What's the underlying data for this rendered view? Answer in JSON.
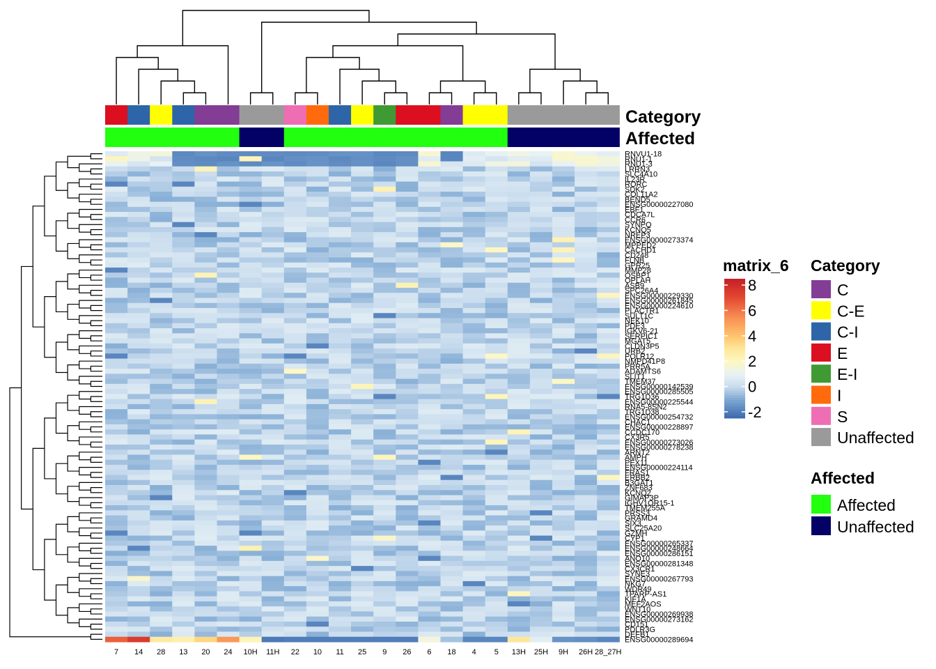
{
  "chart_data": {
    "type": "heatmap",
    "columns": [
      "7",
      "14",
      "28",
      "13",
      "20",
      "24",
      "10H",
      "11H",
      "22",
      "10",
      "11",
      "25",
      "9",
      "26",
      "6",
      "18",
      "4",
      "5",
      "13H",
      "25H",
      "9H",
      "26H",
      "28_27H"
    ],
    "category_annotation": {
      "title": "Category",
      "values": [
        "E",
        "C-I",
        "C-E",
        "C-I",
        "C",
        "C",
        "Unaffected",
        "Unaffected",
        "S",
        "I",
        "C-I",
        "C-E",
        "E-I",
        "E",
        "E",
        "C",
        "C-E",
        "C-E",
        "Unaffected",
        "Unaffected",
        "Unaffected",
        "Unaffected",
        "Unaffected"
      ]
    },
    "affected_annotation": {
      "title": "Affected",
      "values": [
        "Affected",
        "Affected",
        "Affected",
        "Affected",
        "Affected",
        "Affected",
        "Unaffected",
        "Unaffected",
        "Affected",
        "Affected",
        "Affected",
        "Affected",
        "Affected",
        "Affected",
        "Affected",
        "Affected",
        "Affected",
        "Affected",
        "Unaffected",
        "Unaffected",
        "Unaffected",
        "Unaffected",
        "Unaffected"
      ]
    },
    "row_labels": [
      "RNVU1-18",
      "RNU1-1",
      "RNU1-3",
      "LRRN3",
      "SLC4A10",
      "IL23R",
      "RORC",
      "SDK2",
      "COL11A2",
      "BEND5",
      "ENSG00000227080",
      "EBF1",
      "CDCA7L",
      "CCR6",
      "SYNPO",
      "KCNQ5",
      "NREP3",
      "ENSG00000273374",
      "MPPED2",
      "CACHD1",
      "CD248",
      "FLNB",
      "GPR25",
      "MMP28",
      "OSBP1",
      "OPLAH",
      "ASB9",
      "SPC26A4",
      "ENSG00000229330",
      "ENSG00000261845",
      "ENSG00000224610",
      "PLACTR1",
      "SULT1C",
      "NEK10",
      "PDE3",
      "IGKV6-21",
      "SERPIC1",
      "MGAT5",
      "CLDN3P5",
      "URB2",
      "POLR12",
      "NMPD41P8",
      "PRR5A",
      "ADAMTS6",
      "SLIT1",
      "TMEM37",
      "ENSG00000142539",
      "ENSG00000285505",
      "TRG1D36",
      "ENSG00000225544",
      "RNA5-8SN2",
      "TRG1D38",
      "ENSG00000254732",
      "CHAC1",
      "ENSG00000228897",
      "CCDC170",
      "CX3R5",
      "ENSG00000273026",
      "ENSG00000278238",
      "ARNT2",
      "AMPH",
      "PEX11",
      "ENSG00000224114",
      "FRAS1",
      "ERBB2",
      "B3GAT1",
      "ZNF683",
      "KCNQ2",
      "GIMAP3P",
      "IGHV1OR15-1",
      "TMEM255A",
      "PRSS3",
      "GRAMD4",
      "SIX3",
      "SLC25A20",
      "GZMH",
      "CYP1",
      "ENSG00000265337",
      "ENSG00000248664",
      "ENSG00000286151",
      "ANO10",
      "ENSG00000281348",
      "CX3CR1",
      "SYNE3",
      "ENSG00000267793",
      "NKG7",
      "WDR49",
      "TPARP-AS1",
      "KIF1A",
      "MEF2AOS",
      "WNT10",
      "ENSG00000269938",
      "ENSG00000273162",
      "CD151",
      "PDLR3G",
      "DEFB1",
      "ENSG00000289694"
    ],
    "matrix_summary": "Z-scored expression values per gene (rows) across samples (columns); most cells near 0 (light blue), with high values in the bottom row for samples 7 and 14.",
    "highlight_values": {
      "ENSG00000289694": [
        6.5,
        7.5,
        2.8,
        2.5,
        3.5,
        5.2,
        2.2,
        -2.1,
        -2.0,
        -2.0,
        -2.0,
        -2.0,
        -2.0,
        -2.0,
        1.5,
        -0.5,
        -1.8,
        -1.8,
        3.0,
        0.8,
        -1.5,
        -1.6,
        -1.8
      ]
    },
    "color_scale": {
      "title": "matrix_6",
      "ticks": [
        "8",
        "6",
        "4",
        "2",
        "0",
        "-2"
      ],
      "range": [
        -2.5,
        8.5
      ],
      "stops": [
        {
          "v": -2.5,
          "c": "#3a68ae"
        },
        {
          "v": -1.0,
          "c": "#7fa9d3"
        },
        {
          "v": 0.0,
          "c": "#c9dcee"
        },
        {
          "v": 1.0,
          "c": "#e8f2f5"
        },
        {
          "v": 2.0,
          "c": "#fdf7c2"
        },
        {
          "v": 3.0,
          "c": "#fee79a"
        },
        {
          "v": 4.0,
          "c": "#fec46e"
        },
        {
          "v": 5.5,
          "c": "#f88d52"
        },
        {
          "v": 7.0,
          "c": "#e34a33"
        },
        {
          "v": 8.5,
          "c": "#c51f26"
        }
      ]
    },
    "legends": {
      "category": {
        "title": "Category",
        "items": [
          {
            "label": "C",
            "color": "#833d95"
          },
          {
            "label": "C-E",
            "color": "#ffff00"
          },
          {
            "label": "C-I",
            "color": "#2d65a8"
          },
          {
            "label": "E",
            "color": "#db0f1f"
          },
          {
            "label": "E-I",
            "color": "#3f9a33"
          },
          {
            "label": "I",
            "color": "#ff6b0c"
          },
          {
            "label": "S",
            "color": "#ef6db2"
          },
          {
            "label": "Unaffected",
            "color": "#9a9a9a"
          }
        ]
      },
      "affected": {
        "title": "Affected",
        "items": [
          {
            "label": "Affected",
            "color": "#22ff0f"
          },
          {
            "label": "Unaffected",
            "color": "#030165"
          }
        ]
      }
    }
  }
}
